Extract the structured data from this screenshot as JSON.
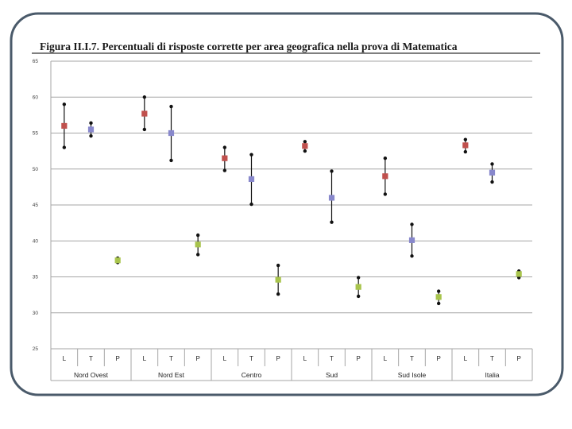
{
  "chart_data": {
    "type": "scatter",
    "title": "Figura II.I.7. Percentuali di risposte corrette per area geografica nella prova di Matematica",
    "ylim": [
      25,
      65
    ],
    "yticks": [
      25,
      30,
      35,
      40,
      45,
      50,
      55,
      60,
      65
    ],
    "grid": true,
    "subcategories": [
      "L",
      "T",
      "P"
    ],
    "groups": [
      {
        "name": "Nord Ovest",
        "points": [
          {
            "sub": "L",
            "value": 56.0,
            "low": 53.0,
            "high": 59.0
          },
          {
            "sub": "T",
            "value": 55.5,
            "low": 54.6,
            "high": 56.4
          },
          {
            "sub": "P",
            "value": 37.3,
            "low": 37.0,
            "high": 37.6
          }
        ]
      },
      {
        "name": "Nord Est",
        "points": [
          {
            "sub": "L",
            "value": 57.7,
            "low": 55.5,
            "high": 60.0
          },
          {
            "sub": "T",
            "value": 55.0,
            "low": 51.2,
            "high": 58.7
          },
          {
            "sub": "P",
            "value": 39.5,
            "low": 38.1,
            "high": 40.8
          }
        ]
      },
      {
        "name": "Centro",
        "points": [
          {
            "sub": "L",
            "value": 51.5,
            "low": 49.8,
            "high": 53.0
          },
          {
            "sub": "T",
            "value": 48.6,
            "low": 45.1,
            "high": 52.0
          },
          {
            "sub": "P",
            "value": 34.6,
            "low": 32.6,
            "high": 36.6
          }
        ]
      },
      {
        "name": "Sud",
        "points": [
          {
            "sub": "L",
            "value": 53.2,
            "low": 52.5,
            "high": 53.8
          },
          {
            "sub": "T",
            "value": 46.0,
            "low": 42.6,
            "high": 49.7
          },
          {
            "sub": "P",
            "value": 33.6,
            "low": 32.3,
            "high": 34.9
          }
        ]
      },
      {
        "name": "Sud Isole",
        "points": [
          {
            "sub": "L",
            "value": 49.0,
            "low": 46.5,
            "high": 51.5
          },
          {
            "sub": "T",
            "value": 40.1,
            "low": 37.9,
            "high": 42.3
          },
          {
            "sub": "P",
            "value": 32.2,
            "low": 31.3,
            "high": 33.0
          }
        ]
      },
      {
        "name": "Italia",
        "points": [
          {
            "sub": "L",
            "value": 53.3,
            "low": 52.4,
            "high": 54.1
          },
          {
            "sub": "T",
            "value": 49.5,
            "low": 48.2,
            "high": 50.7
          },
          {
            "sub": "P",
            "value": 35.4,
            "low": 34.9,
            "high": 35.8
          }
        ]
      }
    ],
    "colors": {
      "L": "#c0504d",
      "T": "#8888cc",
      "P": "#a8c44c",
      "whisker": "#111111",
      "grid": "#a6a6a6"
    }
  }
}
